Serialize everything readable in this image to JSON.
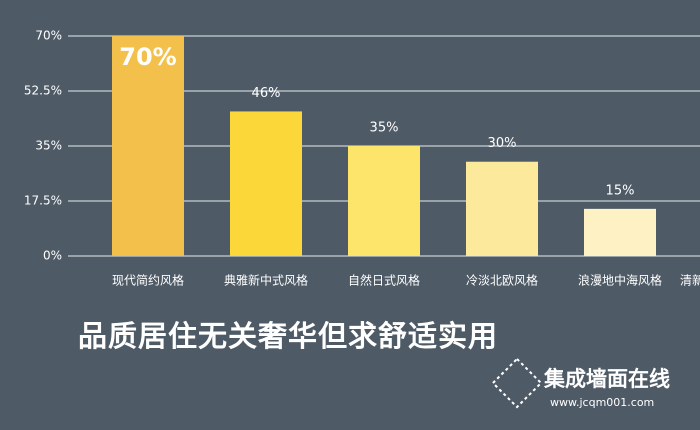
{
  "chart_data": {
    "type": "bar",
    "categories": [
      "现代简约风格",
      "典雅新中式风格",
      "自然日式风格",
      "冷淡北欧风格",
      "浪漫地中海风格",
      "清新"
    ],
    "values": [
      70,
      46,
      35,
      30,
      15,
      null
    ],
    "value_labels": [
      "70%",
      "46%",
      "35%",
      "30%",
      "15%",
      null
    ],
    "colors": [
      "#f4c04c",
      "#fcd739",
      "#fde46a",
      "#fde99c",
      "#fef2c4",
      "#fef6da"
    ],
    "ylim": [
      0,
      70
    ],
    "yticks": [
      {
        "value": 0,
        "label": "0%"
      },
      {
        "value": 17.5,
        "label": "17.5%"
      },
      {
        "value": 35,
        "label": "35%"
      },
      {
        "value": 52.5,
        "label": "52.5%"
      },
      {
        "value": 70,
        "label": "70%"
      }
    ],
    "grid": true
  },
  "caption": "品质居住无关奢华但求舒适实用",
  "watermark": {
    "brand": "集成墙面在线",
    "url": "www.jcqm001.com"
  }
}
